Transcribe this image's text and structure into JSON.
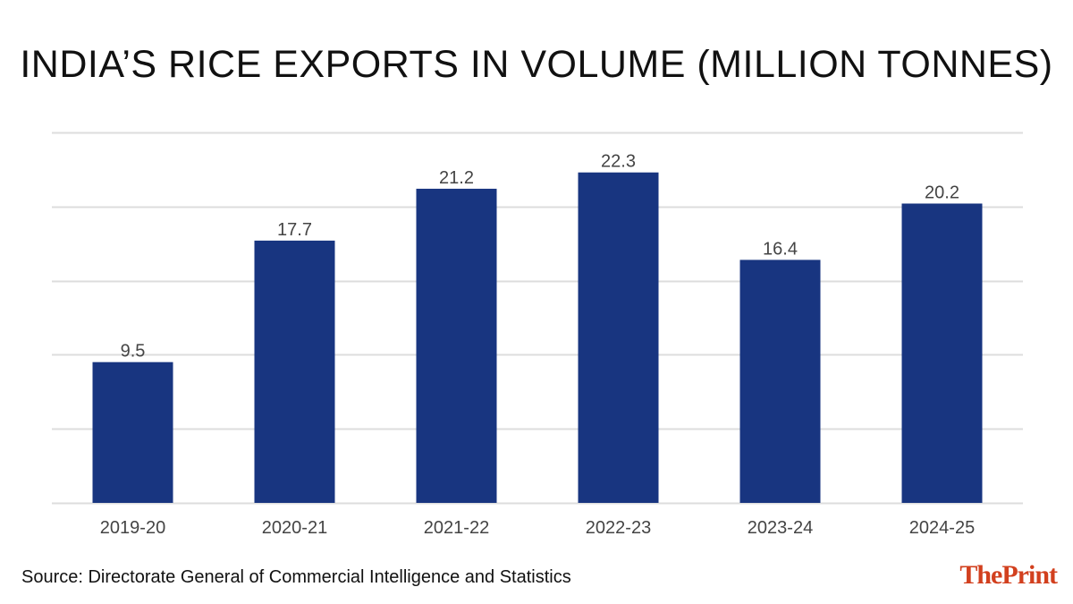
{
  "chart_data": {
    "type": "bar",
    "title": "INDIA’S RICE EXPORTS IN VOLUME (MILLION TONNES)",
    "categories": [
      "2019-20",
      "2020-21",
      "2021-22",
      "2022-23",
      "2023-24",
      "2024-25"
    ],
    "values": [
      9.5,
      17.7,
      21.2,
      22.3,
      16.4,
      20.2
    ],
    "data_labels": [
      "9.5",
      "17.7",
      "21.2",
      "22.3",
      "16.4",
      "20.2"
    ],
    "xlabel": "",
    "ylabel": "",
    "ylim": [
      0,
      25
    ],
    "gridlines": [
      0,
      5,
      10,
      15,
      20,
      25
    ],
    "grid": true,
    "bar_color": "#183580",
    "grid_color": "#dddddd",
    "label_color": "#444444"
  },
  "footer": {
    "source": "Source: Directorate General of Commercial Intelligence and Statistics",
    "brand_a": "The",
    "brand_b": "Print"
  },
  "colors": {
    "brand": "#d2401e",
    "text": "#111111"
  }
}
